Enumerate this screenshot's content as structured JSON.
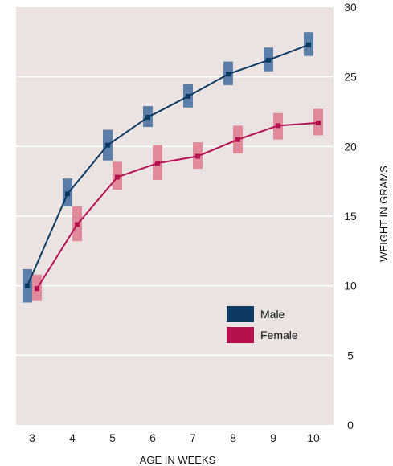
{
  "chart_data": {
    "type": "line",
    "title": "",
    "xlabel": "AGE IN WEEKS",
    "ylabel": "WEIGHT IN GRAMS",
    "x": [
      3,
      4,
      5,
      6,
      7,
      8,
      9,
      10
    ],
    "xlim": [
      2.6,
      10.5
    ],
    "ylim": [
      0,
      30
    ],
    "y_ticks": [
      0,
      5,
      10,
      15,
      20,
      25,
      30
    ],
    "grid": "horizontal",
    "legend_position": "lower-right",
    "background_color": "#ebe3e1",
    "series": [
      {
        "name": "Male",
        "color": "#0d3a63",
        "band_color": "#5b7fa8",
        "values": [
          10.0,
          16.6,
          20.1,
          22.1,
          23.6,
          25.2,
          26.2,
          27.3
        ],
        "error_low": [
          8.8,
          15.7,
          19.0,
          21.4,
          22.8,
          24.4,
          25.4,
          26.5
        ],
        "error_high": [
          11.2,
          17.7,
          21.2,
          22.9,
          24.5,
          26.1,
          27.1,
          28.2
        ]
      },
      {
        "name": "Female",
        "color": "#b5114f",
        "band_color": "#e08a9b",
        "values": [
          9.8,
          14.4,
          17.8,
          18.8,
          19.3,
          20.5,
          21.5,
          21.7
        ],
        "error_low": [
          8.9,
          13.2,
          16.9,
          17.6,
          18.4,
          19.5,
          20.5,
          20.8
        ],
        "error_high": [
          10.8,
          15.7,
          18.9,
          20.1,
          20.3,
          21.5,
          22.4,
          22.7
        ]
      }
    ]
  }
}
